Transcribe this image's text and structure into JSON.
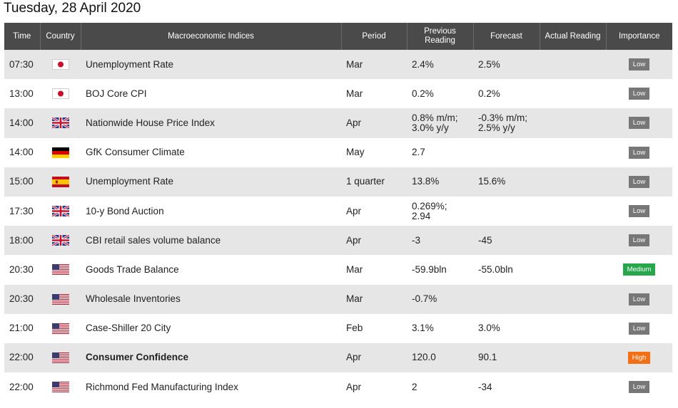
{
  "date": "Tuesday, 28 April 2020",
  "headers": {
    "time": "Time",
    "country": "Country",
    "indices": "Macroeconomic Indices",
    "period": "Period",
    "previous_line1": "Previous",
    "previous_line2": "Reading",
    "forecast": "Forecast",
    "actual": "Actual Reading",
    "importance": "Importance"
  },
  "rows": [
    {
      "time": "07:30",
      "country": "japan-flag-icon",
      "indicator": "Unemployment Rate",
      "period": "Mar",
      "previous": [
        "2.4%"
      ],
      "forecast": [
        "2.5%"
      ],
      "actual": "",
      "importance": "Low",
      "bold": false
    },
    {
      "time": "13:00",
      "country": "japan-flag-icon",
      "indicator": "BOJ Core CPI",
      "period": "Mar",
      "previous": [
        "0.2%"
      ],
      "forecast": [
        "0.2%"
      ],
      "actual": "",
      "importance": "Low",
      "bold": false
    },
    {
      "time": "14:00",
      "country": "uk-flag-icon",
      "indicator": "Nationwide House Price Index",
      "period": "Apr",
      "previous": [
        "0.8% m/m;",
        "3.0% y/y"
      ],
      "forecast": [
        "-0.3% m/m;",
        "2.5% y/y"
      ],
      "actual": "",
      "importance": "Low",
      "bold": false
    },
    {
      "time": "14:00",
      "country": "germany-flag-icon",
      "indicator": "GfK Consumer Climate",
      "period": "May",
      "previous": [
        "2.7"
      ],
      "forecast": [],
      "actual": "",
      "importance": "Low",
      "bold": false
    },
    {
      "time": "15:00",
      "country": "spain-flag-icon",
      "indicator": "Unemployment Rate",
      "period": "1 quarter",
      "previous": [
        "13.8%"
      ],
      "forecast": [
        "15.6%"
      ],
      "actual": "",
      "importance": "Low",
      "bold": false
    },
    {
      "time": "17:30",
      "country": "uk-flag-icon",
      "indicator": "10-y Bond Auction",
      "period": "Apr",
      "previous": [
        "0.269%;",
        "2.94"
      ],
      "forecast": [],
      "actual": "",
      "importance": "Low",
      "bold": false
    },
    {
      "time": "18:00",
      "country": "uk-flag-icon",
      "indicator": "CBI retail sales volume balance",
      "period": "Apr",
      "previous": [
        "-3"
      ],
      "forecast": [
        "-45"
      ],
      "actual": "",
      "importance": "Low",
      "bold": false
    },
    {
      "time": "20:30",
      "country": "usa-flag-icon",
      "indicator": "Goods Trade Balance",
      "period": "Mar",
      "previous": [
        "-59.9bln"
      ],
      "forecast": [
        "-55.0bln"
      ],
      "actual": "",
      "importance": "Medium",
      "bold": false
    },
    {
      "time": "20:30",
      "country": "usa-flag-icon",
      "indicator": "Wholesale Inventories",
      "period": "Mar",
      "previous": [
        "-0.7%"
      ],
      "forecast": [],
      "actual": "",
      "importance": "Low",
      "bold": false
    },
    {
      "time": "21:00",
      "country": "usa-flag-icon",
      "indicator": "Case-Shiller 20 City",
      "period": "Feb",
      "previous": [
        "3.1%"
      ],
      "forecast": [
        "3.0%"
      ],
      "actual": "",
      "importance": "Low",
      "bold": false
    },
    {
      "time": "22:00",
      "country": "usa-flag-icon",
      "indicator": "Consumer Confidence",
      "period": "Apr",
      "previous": [
        "120.0"
      ],
      "forecast": [
        "90.1"
      ],
      "actual": "",
      "importance": "High",
      "bold": true
    },
    {
      "time": "22:00",
      "country": "usa-flag-icon",
      "indicator": "Richmond Fed Manufacturing Index",
      "period": "Apr",
      "previous": [
        "2"
      ],
      "forecast": [
        "-34"
      ],
      "actual": "",
      "importance": "Low",
      "bold": false
    }
  ],
  "colors": {
    "header_bg": "#4a4a4a",
    "row_alt_bg": "#e6e6e6",
    "low": "#777777",
    "medium": "#28a64b",
    "high": "#f26f16"
  }
}
